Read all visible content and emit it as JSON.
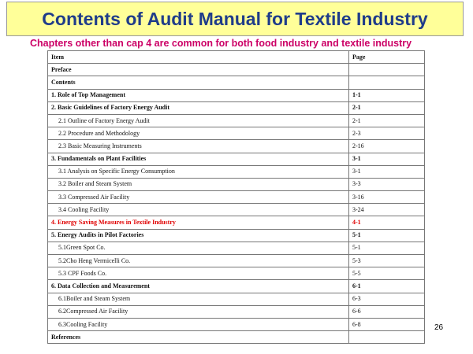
{
  "title": "Contents of Audit Manual for Textile Industry",
  "subtitle": "Chapters other than cap 4 are common for both food industry and textile industry",
  "colors": {
    "title_bg": "#ffff99",
    "title_text": "#1f3c8a",
    "subtitle_text": "#cc0066",
    "highlight_text": "#e00000"
  },
  "table": {
    "headers": {
      "item": "Item",
      "page": "Page"
    },
    "rows": [
      {
        "item": "Preface",
        "page": "",
        "bold": true,
        "indent": false,
        "highlight": false
      },
      {
        "item": "Contents",
        "page": "",
        "bold": true,
        "indent": false,
        "highlight": false
      },
      {
        "item": "1. Role of Top Management",
        "page": "1-1",
        "bold": true,
        "indent": false,
        "highlight": false
      },
      {
        "item": "2. Basic Guidelines of Factory Energy Audit",
        "page": "2-1",
        "bold": true,
        "indent": false,
        "highlight": false
      },
      {
        "item": "2.1 Outline of Factory Energy Audit",
        "page": "2-1",
        "bold": false,
        "indent": true,
        "highlight": false
      },
      {
        "item": "2.2 Procedure and Methodology",
        "page": "2-3",
        "bold": false,
        "indent": true,
        "highlight": false
      },
      {
        "item": "2.3 Basic Measuring Instruments",
        "page": "2-16",
        "bold": false,
        "indent": true,
        "highlight": false
      },
      {
        "item": "3. Fundamentals on Plant Facilities",
        "page": "3-1",
        "bold": true,
        "indent": false,
        "highlight": false
      },
      {
        "item": "3.1 Analysis on Specific Energy Consumption",
        "page": "3-1",
        "bold": false,
        "indent": true,
        "highlight": false
      },
      {
        "item": "3.2 Boiler and Steam System",
        "page": "3-3",
        "bold": false,
        "indent": true,
        "highlight": false
      },
      {
        "item": "3.3 Compressed Air Facility",
        "page": "3-16",
        "bold": false,
        "indent": true,
        "highlight": false
      },
      {
        "item": "3.4 Cooling Facility",
        "page": "3-24",
        "bold": false,
        "indent": true,
        "highlight": false
      },
      {
        "item": "4. Energy Saving Measures in Textile Industry",
        "page": "4-1",
        "bold": true,
        "indent": false,
        "highlight": true
      },
      {
        "item": "5. Energy Audits in Pilot Factories",
        "page": "5-1",
        "bold": true,
        "indent": false,
        "highlight": false
      },
      {
        "item": "5.1Green Spot Co.",
        "page": "5-1",
        "bold": false,
        "indent": true,
        "highlight": false
      },
      {
        "item": "5.2Cho Heng Vermicelli Co.",
        "page": "5-3",
        "bold": false,
        "indent": true,
        "highlight": false
      },
      {
        "item": "5.3 CPF Foods Co.",
        "page": "5-5",
        "bold": false,
        "indent": true,
        "highlight": false
      },
      {
        "item": "6. Data Collection and Measurement",
        "page": "6-1",
        "bold": true,
        "indent": false,
        "highlight": false
      },
      {
        "item": "6.1Boiler and Steam System",
        "page": "6-3",
        "bold": false,
        "indent": true,
        "highlight": false
      },
      {
        "item": "6.2Compressed Air Facility",
        "page": "6-6",
        "bold": false,
        "indent": true,
        "highlight": false
      },
      {
        "item": "6.3Cooling Facility",
        "page": "6-8",
        "bold": false,
        "indent": true,
        "highlight": false
      },
      {
        "item": "References",
        "page": "",
        "bold": true,
        "indent": false,
        "highlight": false
      }
    ]
  },
  "slide_number": "26"
}
